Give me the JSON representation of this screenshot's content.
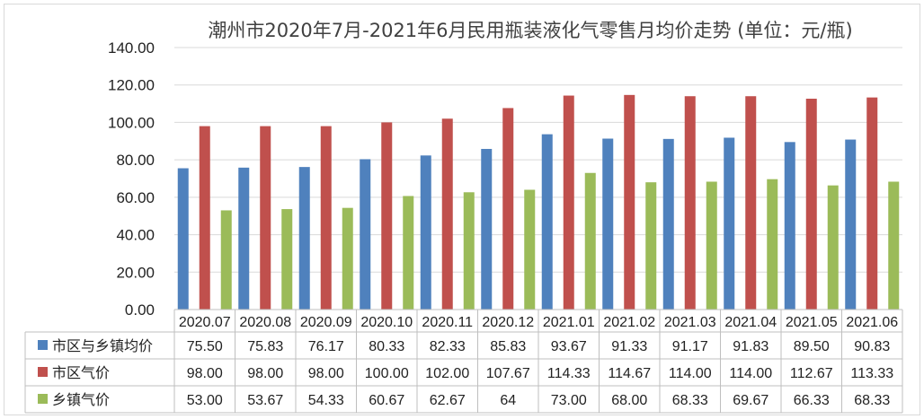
{
  "chart_data": {
    "type": "bar",
    "title": "潮州市2020年7月-2021年6月民用瓶装液化气零售月均价走势 (单位：元/瓶)",
    "categories": [
      "2020.07",
      "2020.08",
      "2020.09",
      "2020.10",
      "2020.11",
      "2020.12",
      "2021.01",
      "2021.02",
      "2021.03",
      "2021.04",
      "2021.05",
      "2021.06"
    ],
    "ylim": [
      0,
      140
    ],
    "yticks": [
      "0.00",
      "20.00",
      "40.00",
      "60.00",
      "80.00",
      "100.00",
      "120.00",
      "140.00"
    ],
    "grid": true,
    "legend": "data-table",
    "series": [
      {
        "name": "市区与乡镇均价",
        "color": "#4f81bd",
        "values": [
          75.5,
          75.83,
          76.17,
          80.33,
          82.33,
          85.83,
          93.67,
          91.33,
          91.17,
          91.83,
          89.5,
          90.83
        ],
        "labels": [
          "75.50",
          "75.83",
          "76.17",
          "80.33",
          "82.33",
          "85.83",
          "93.67",
          "91.33",
          "91.17",
          "91.83",
          "89.50",
          "90.83"
        ]
      },
      {
        "name": "市区气价",
        "color": "#c0504d",
        "values": [
          98.0,
          98.0,
          98.0,
          100.0,
          102.0,
          107.67,
          114.33,
          114.67,
          114.0,
          114.0,
          112.67,
          113.33
        ],
        "labels": [
          "98.00",
          "98.00",
          "98.00",
          "100.00",
          "102.00",
          "107.67",
          "114.33",
          "114.67",
          "114.00",
          "114.00",
          "112.67",
          "113.33"
        ]
      },
      {
        "name": "乡镇气价",
        "color": "#9bbb59",
        "values": [
          53.0,
          53.67,
          54.33,
          60.67,
          62.67,
          64,
          73.0,
          68.0,
          68.33,
          69.67,
          66.33,
          68.33
        ],
        "labels": [
          "53.00",
          "53.67",
          "54.33",
          "60.67",
          "62.67",
          "64",
          "73.00",
          "68.00",
          "68.33",
          "69.67",
          "66.33",
          "68.33"
        ]
      }
    ]
  }
}
